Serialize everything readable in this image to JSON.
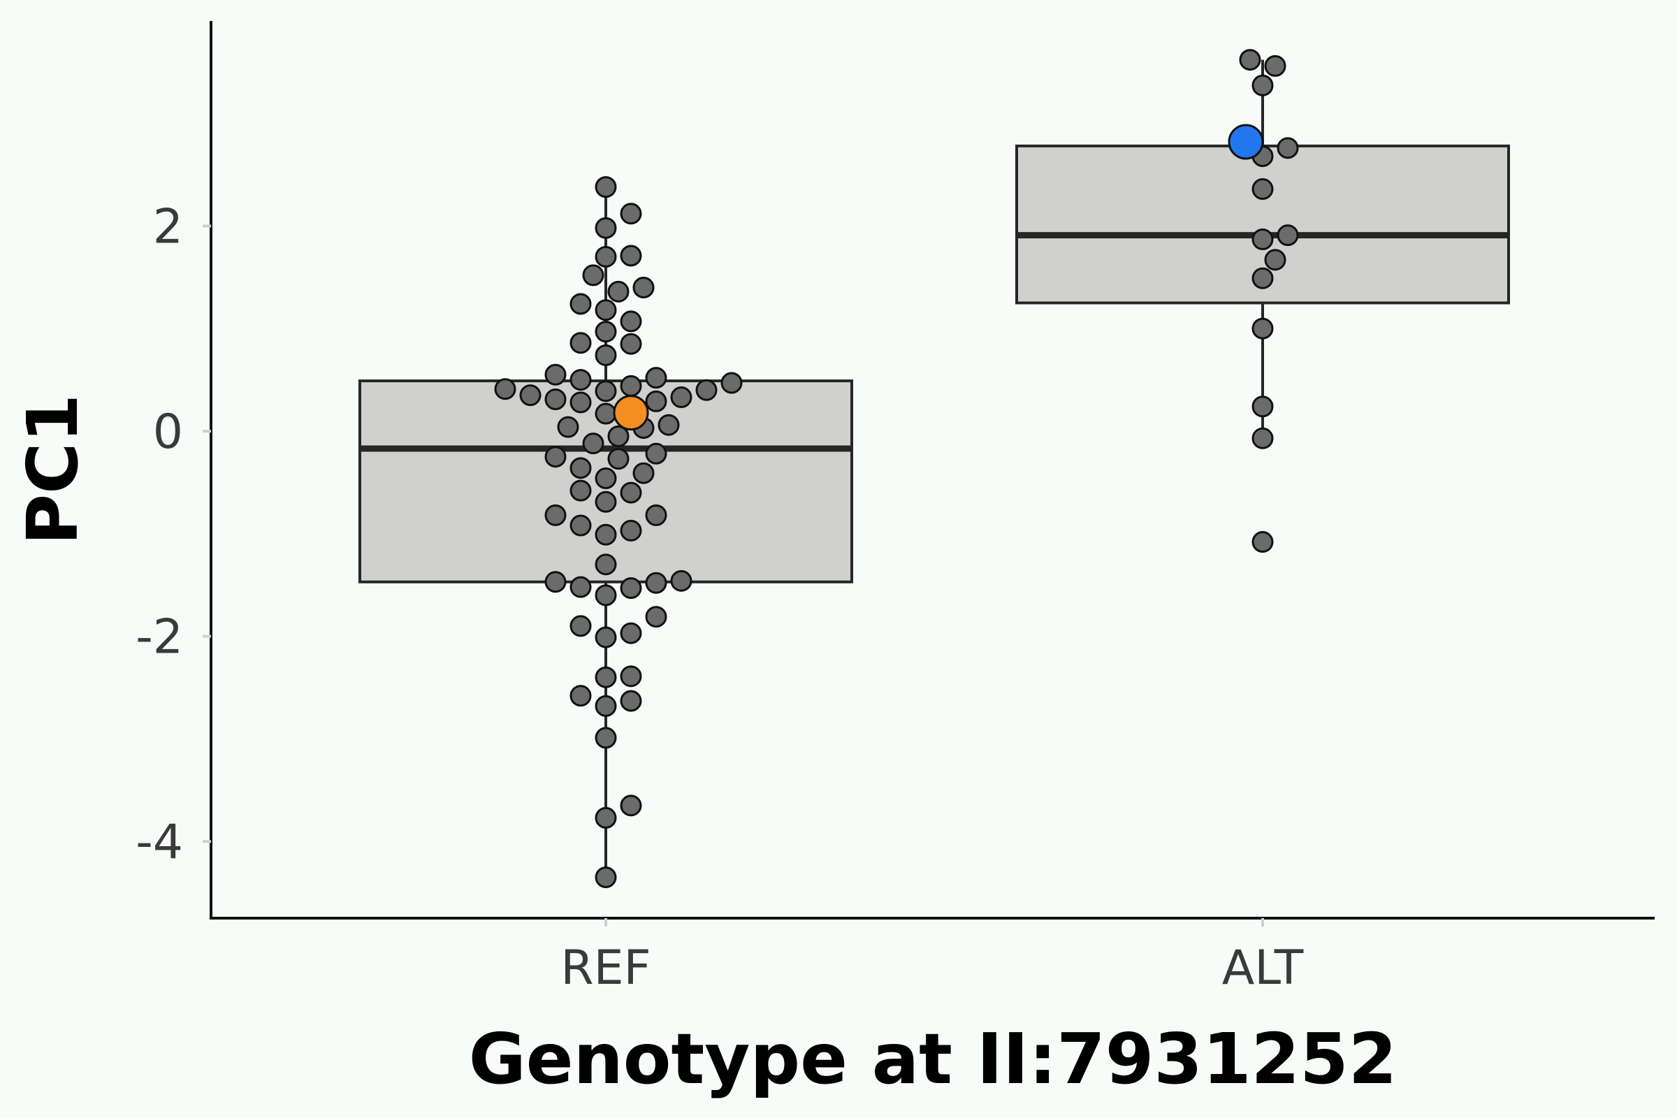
{
  "chart_data": {
    "type": "box",
    "xlabel": "Genotype at II:7931252",
    "ylabel": "PC1",
    "categories": [
      "REF",
      "ALT"
    ],
    "ylim": [
      -4.75,
      4.05
    ],
    "yticks": [
      -4,
      -2,
      0,
      2
    ],
    "grid": false,
    "legend": "none",
    "colors": {
      "background": "#f8fcf9",
      "box_fill": "#d0d1cf",
      "box_stroke": "#262626",
      "point_fill": "#6b6b6b",
      "point_stroke": "#111111",
      "highlight_ref": "#f28e22",
      "highlight_alt": "#2277ee"
    },
    "boxes": [
      {
        "category": "REF",
        "q1": -1.47,
        "median": -0.17,
        "q3": 0.49,
        "whisker_low": -4.35,
        "whisker_high": 2.38
      },
      {
        "category": "ALT",
        "q1": 1.25,
        "median": 1.91,
        "q3": 2.78,
        "whisker_low": -0.07,
        "whisker_high": 3.62
      }
    ],
    "highlighted_points": [
      {
        "category": "REF",
        "y": 0.18,
        "color": "#f28e22"
      },
      {
        "category": "ALT",
        "y": 2.82,
        "color": "#2277ee"
      }
    ],
    "points": {
      "REF": [
        2.38,
        2.12,
        1.98,
        1.71,
        1.7,
        1.52,
        1.4,
        1.36,
        1.24,
        1.18,
        1.07,
        0.97,
        0.86,
        0.85,
        0.74,
        0.55,
        0.52,
        0.5,
        0.47,
        0.44,
        0.41,
        0.4,
        0.39,
        0.35,
        0.33,
        0.31,
        0.29,
        0.28,
        0.22,
        0.17,
        0.06,
        0.04,
        0.03,
        -0.05,
        -0.12,
        -0.22,
        -0.25,
        -0.27,
        -0.36,
        -0.41,
        -0.46,
        -0.58,
        -0.6,
        -0.69,
        -0.82,
        -0.82,
        -0.92,
        -0.97,
        -1.01,
        -1.3,
        -1.46,
        -1.47,
        -1.48,
        -1.52,
        -1.53,
        -1.6,
        -1.81,
        -1.9,
        -1.97,
        -2.01,
        -2.39,
        -2.4,
        -2.58,
        -2.63,
        -2.68,
        -2.99,
        -3.65,
        -3.77,
        -4.35
      ],
      "ALT": [
        3.62,
        3.56,
        3.37,
        2.76,
        2.68,
        2.36,
        1.91,
        1.87,
        1.67,
        1.49,
        1.0,
        0.24,
        -0.07,
        -1.08
      ]
    }
  }
}
